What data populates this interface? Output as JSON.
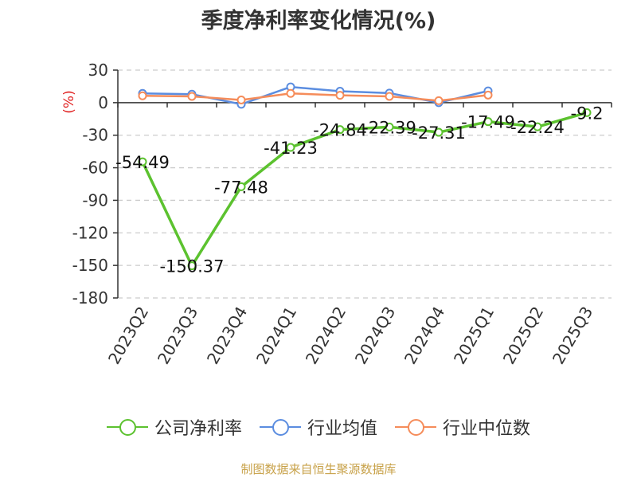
{
  "title": "季度净利率变化情况(%)",
  "source": "制图数据来自恒生聚源数据库",
  "chart_data": {
    "type": "line",
    "title": "季度净利率变化情况(%)",
    "ylabel": "(%)",
    "ylim": [
      -180,
      30
    ],
    "yticks": [
      30,
      0,
      -30,
      -60,
      -90,
      -120,
      -150,
      -180
    ],
    "categories": [
      "2023Q2",
      "2023Q3",
      "2023Q4",
      "2024Q1",
      "2024Q2",
      "2024Q3",
      "2024Q4",
      "2025Q1",
      "2025Q2",
      "2025Q3"
    ],
    "grid": true,
    "legend_position": "bottom",
    "series": [
      {
        "name": "公司净利率",
        "color": "#5cc22f",
        "values": [
          -54.49,
          -150.37,
          -77.48,
          -41.23,
          -24.84,
          -22.39,
          -27.31,
          -17.49,
          -22.24,
          -9.2
        ],
        "labels": [
          "-54.49",
          "-150.37",
          "-77.48",
          "-41.23",
          "-24.84",
          "-22.39",
          "-27.31",
          "-17.49",
          "-22.24",
          "-9.2"
        ]
      },
      {
        "name": "行业均值",
        "color": "#5b8de0",
        "values": [
          8.5,
          7.8,
          -1.5,
          14.5,
          10.5,
          8.8,
          0.0,
          10.8,
          null,
          null
        ]
      },
      {
        "name": "行业中位数",
        "color": "#f58c5a",
        "values": [
          6.3,
          5.8,
          2.5,
          8.5,
          6.8,
          5.8,
          1.8,
          7.0,
          null,
          null
        ]
      }
    ]
  }
}
